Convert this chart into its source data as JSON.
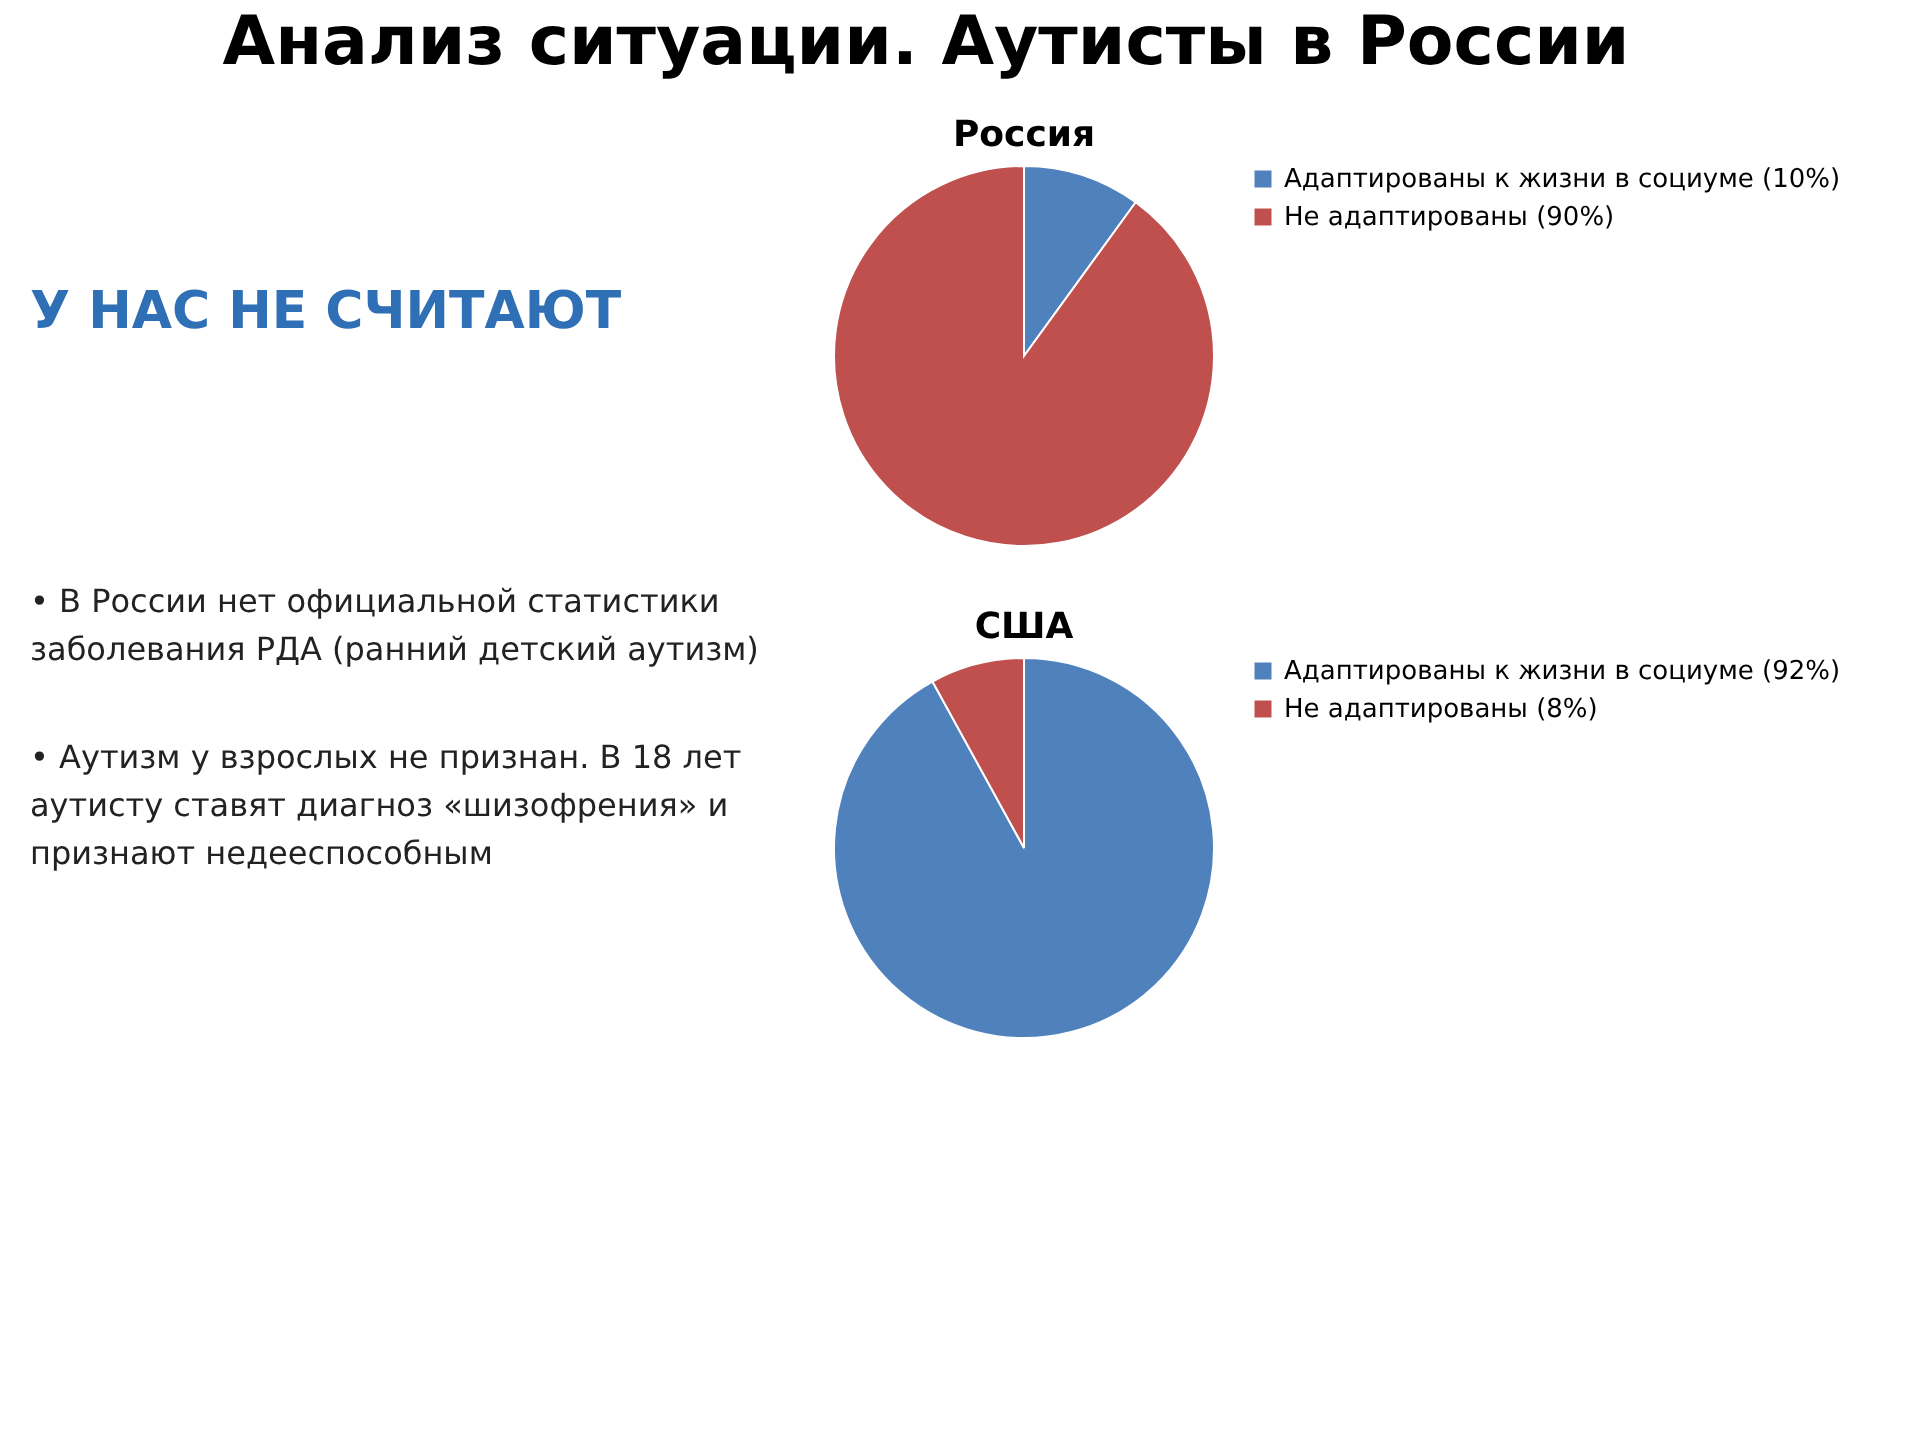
{
  "chart_data": [
    {
      "type": "other",
      "title": "Анализ ситуации. Аутисты в России",
      "annotations": [
        "У НАС НЕ СЧИТАЮТ",
        "• В России нет официальной статистики заболевания РДА (ранний детский аутизм)",
        "• Аутизм у взрослых не признан. В 18 лет аутисту ставят диагноз «шизофрения» и признают недееспособным"
      ]
    },
    {
      "type": "pie",
      "title": "Россия",
      "categories": [
        "Адаптированы к жизни в социуме (10%)",
        "Не адаптированы (90%)"
      ],
      "values": [
        10,
        90
      ],
      "colors": [
        "#4f81bd",
        "#c0504d"
      ],
      "legend": "right"
    },
    {
      "type": "pie",
      "title": "США",
      "categories": [
        "Адаптированы к жизни в социуме (92%)",
        "Не адаптированы (8%)"
      ],
      "values": [
        92,
        8
      ],
      "colors": [
        "#4f81bd",
        "#c0504d"
      ],
      "legend": "right"
    }
  ]
}
